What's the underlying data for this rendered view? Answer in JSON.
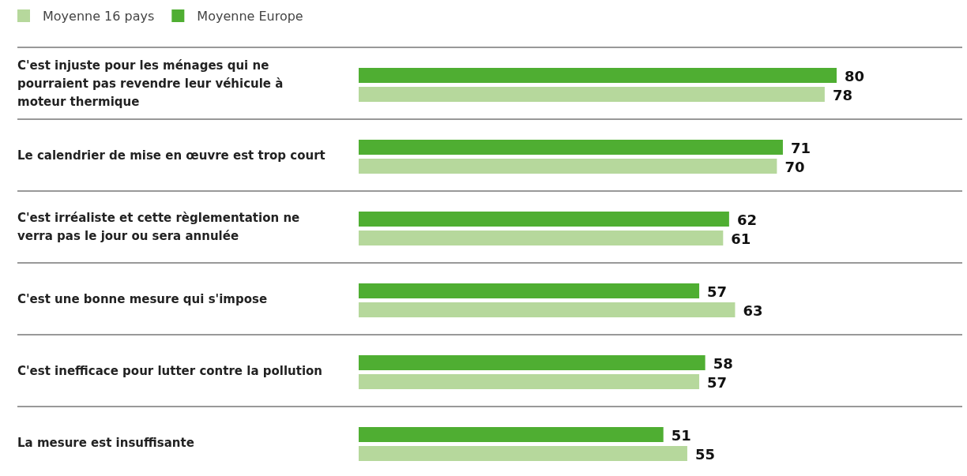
{
  "chart_data": {
    "type": "bar",
    "orientation": "horizontal",
    "data_labels": true,
    "legend": "top left",
    "categories": [
      "C'est injuste pour les ménages qui ne pourraient pas revendre leur véhicule à moteur thermique",
      "Le calendrier de mise en œuvre est trop court",
      "C'est irréaliste et cette règlementation ne verra pas le jour ou sera annulée",
      "C'est une bonne mesure qui s'impose",
      "C'est inefficace pour lutter contre la pollution",
      "La mesure est insuffisante"
    ],
    "series": [
      {
        "name": "Moyenne 16 pays",
        "color": "#b6d89c",
        "values": [
          78,
          70,
          61,
          63,
          57,
          55
        ]
      },
      {
        "name": "Moyenne Europe",
        "color": "#4fae32",
        "values": [
          80,
          71,
          62,
          57,
          58,
          51
        ]
      }
    ]
  }
}
